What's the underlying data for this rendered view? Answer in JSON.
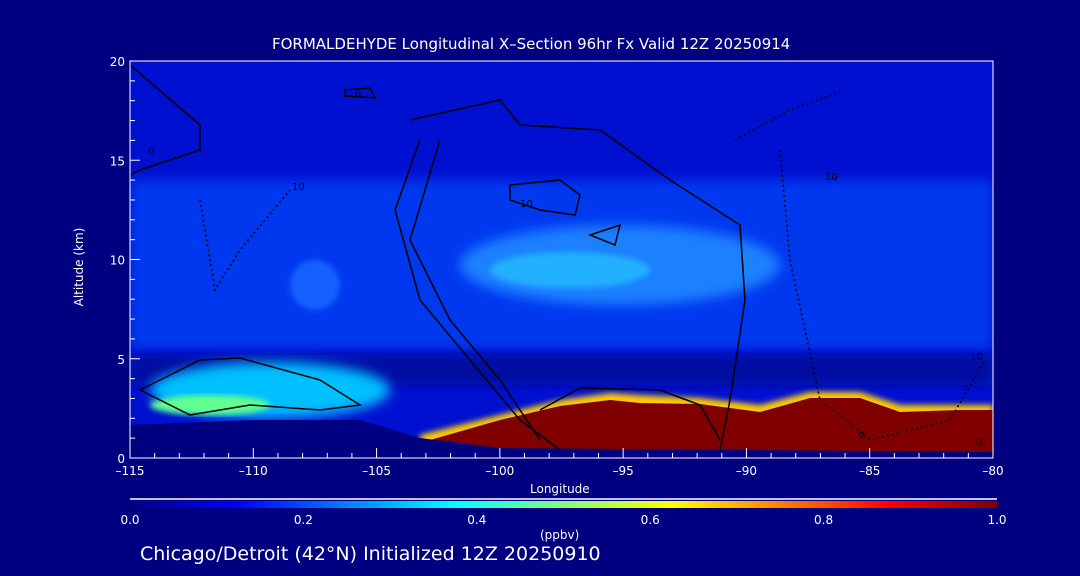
{
  "chart_data": {
    "type": "heatmap",
    "title": "FORMALDEHYDE Longitudinal X–Section 96hr  Fx Valid 12Z 20250914",
    "xlabel": "Longitude",
    "ylabel": "Altitude (km)",
    "xlim": [
      -115,
      -80
    ],
    "ylim": [
      0,
      20
    ],
    "xticks": [
      "–115",
      "–110",
      "–105",
      "–100",
      "–95",
      "–90",
      "–85",
      "–80"
    ],
    "xtick_values": [
      -115,
      -110,
      -105,
      -100,
      -95,
      -90,
      -85,
      -80
    ],
    "yticks": [
      "0",
      "5",
      "10",
      "15",
      "20"
    ],
    "ytick_values": [
      0,
      5,
      10,
      15,
      20
    ],
    "colorbar": {
      "label": "(ppbv)",
      "range": [
        0.0,
        1.0
      ],
      "ticks": [
        "0.0",
        "0.2",
        "0.4",
        "0.6",
        "0.8",
        "1.0"
      ],
      "colors": [
        "#000080",
        "#0000ff",
        "#00ffff",
        "#ffff00",
        "#ff0000",
        "#800000"
      ]
    },
    "regions": [
      {
        "desc": "high concentration boundary layer",
        "lon": [
          -100,
          -80
        ],
        "alt": [
          0,
          2.5
        ],
        "value": 1.0
      },
      {
        "desc": "upper-level maximum",
        "lon": [
          -103,
          -90
        ],
        "alt": [
          8.5,
          11.5
        ],
        "value": 0.35
      },
      {
        "desc": "western low-level maximum",
        "lon": [
          -115,
          -105
        ],
        "alt": [
          1.5,
          4
        ],
        "value": 0.45
      }
    ],
    "contour_labels": [
      "0",
      "10",
      "10",
      "10",
      "10",
      "0",
      "0",
      "0"
    ]
  },
  "footer": "Chicago/Detroit (42°N) Initialized 12Z 20250910"
}
